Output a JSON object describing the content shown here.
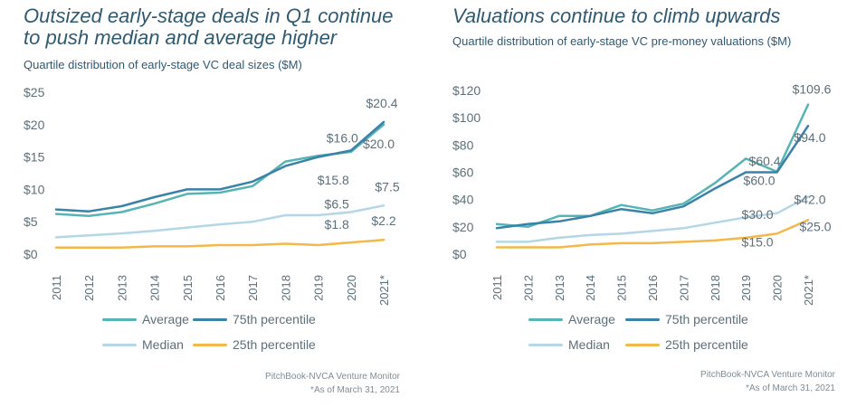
{
  "colors": {
    "average": "#56b4b4",
    "p75": "#3a82a8",
    "median": "#b4d6e6",
    "p25": "#f3b84a",
    "title": "#2f5a72",
    "axis": "#5d6f79"
  },
  "chart_data": [
    {
      "type": "line",
      "title": "Outsized early-stage deals in Q1 continue to push median and average higher",
      "title_lines": [
        "Outsized early-stage deals in Q1 continue",
        "to push median and average higher"
      ],
      "subtitle": "Quartile distribution of early-stage VC deal sizes ($M)",
      "categories": [
        "2011",
        "2012",
        "2013",
        "2014",
        "2015",
        "2016",
        "2017",
        "2018",
        "2019",
        "2020",
        "2021*"
      ],
      "ylim": [
        0,
        25
      ],
      "yticks": [
        0,
        5,
        10,
        15,
        20,
        25
      ],
      "ytick_labels": [
        "$0",
        "$5",
        "$10",
        "$15",
        "$20",
        "$25"
      ],
      "grid": false,
      "legend_position": "bottom",
      "series": [
        {
          "name": "Average",
          "color_key": "average",
          "values": [
            6.2,
            5.9,
            6.5,
            7.8,
            9.3,
            9.5,
            10.5,
            14.3,
            15.2,
            15.8,
            20.0
          ]
        },
        {
          "name": "75th percentile",
          "color_key": "p75",
          "values": [
            6.9,
            6.6,
            7.4,
            8.8,
            10.0,
            10.0,
            11.2,
            13.6,
            15.0,
            16.0,
            20.4
          ]
        },
        {
          "name": "Median",
          "color_key": "median",
          "values": [
            2.6,
            2.9,
            3.2,
            3.6,
            4.1,
            4.6,
            5.0,
            6.0,
            6.0,
            6.5,
            7.5
          ]
        },
        {
          "name": "25th percentile",
          "color_key": "p25",
          "values": [
            1.0,
            1.0,
            1.0,
            1.2,
            1.2,
            1.4,
            1.4,
            1.6,
            1.4,
            1.8,
            2.2
          ]
        }
      ],
      "annotations": [
        {
          "text": "$20.4",
          "series": "75th percentile",
          "index": 10,
          "anchor": "middle",
          "dx": -2,
          "dy": -16
        },
        {
          "text": "$16.0",
          "series": "75th percentile",
          "index": 9,
          "anchor": "end",
          "dx": 8,
          "dy": -9
        },
        {
          "text": "$20.0",
          "series": "Average",
          "index": 10,
          "anchor": "end",
          "dx": 12,
          "dy": 26
        },
        {
          "text": "$15.8",
          "series": "Average",
          "index": 9,
          "anchor": "end",
          "dx": -2,
          "dy": 36
        },
        {
          "text": "$6.5",
          "series": "Median",
          "index": 9,
          "anchor": "end",
          "dx": -2,
          "dy": -4
        },
        {
          "text": "$7.5",
          "series": "Median",
          "index": 10,
          "anchor": "middle",
          "dx": 4,
          "dy": -16
        },
        {
          "text": "$1.8",
          "series": "25th percentile",
          "index": 9,
          "anchor": "end",
          "dx": -2,
          "dy": -15
        },
        {
          "text": "$2.2",
          "series": "25th percentile",
          "index": 10,
          "anchor": "middle",
          "dx": 0,
          "dy": -16
        }
      ]
    },
    {
      "type": "line",
      "title": "Valuations continue to climb upwards",
      "title_lines": [
        "Valuations continue to climb upwards"
      ],
      "subtitle": "Quartile distribution of early-stage VC pre-money valuations ($M)",
      "categories": [
        "2011",
        "2012",
        "2013",
        "2014",
        "2015",
        "2016",
        "2017",
        "2018",
        "2019",
        "2020",
        "2021*"
      ],
      "ylim": [
        0,
        120
      ],
      "yticks": [
        0,
        20,
        40,
        60,
        80,
        100,
        120
      ],
      "ytick_labels": [
        "$0",
        "$20",
        "$40",
        "$60",
        "$80",
        "$100",
        "$120"
      ],
      "grid": false,
      "legend_position": "bottom",
      "series": [
        {
          "name": "Average",
          "color_key": "average",
          "values": [
            22,
            20,
            28,
            28,
            36,
            32,
            37,
            52,
            70,
            60.4,
            109.6
          ]
        },
        {
          "name": "75th percentile",
          "color_key": "p75",
          "values": [
            19,
            22,
            24,
            28,
            33,
            30,
            35,
            48,
            60,
            60.0,
            94.0
          ]
        },
        {
          "name": "Median",
          "color_key": "median",
          "values": [
            9,
            9,
            12,
            14,
            15,
            17,
            19,
            23,
            27,
            30.0,
            42.0
          ]
        },
        {
          "name": "25th percentile",
          "color_key": "p25",
          "values": [
            5,
            5,
            5,
            7,
            8,
            8,
            9,
            10,
            12,
            15.0,
            25.0
          ]
        }
      ],
      "annotations": [
        {
          "text": "$109.6",
          "series": "Average",
          "index": 10,
          "anchor": "middle",
          "dx": 4,
          "dy": -12
        },
        {
          "text": "$60.4",
          "series": "Average",
          "index": 9,
          "anchor": "end",
          "dx": 4,
          "dy": -7
        },
        {
          "text": "$60.0",
          "series": "75th percentile",
          "index": 9,
          "anchor": "end",
          "dx": -2,
          "dy": 14
        },
        {
          "text": "$94.0",
          "series": "75th percentile",
          "index": 10,
          "anchor": "middle",
          "dx": 2,
          "dy": 18
        },
        {
          "text": "$30.0",
          "series": "Median",
          "index": 9,
          "anchor": "end",
          "dx": -4,
          "dy": 6
        },
        {
          "text": "$42.0",
          "series": "Median",
          "index": 10,
          "anchor": "middle",
          "dx": 2,
          "dy": 8
        },
        {
          "text": "$15.0",
          "series": "25th percentile",
          "index": 9,
          "anchor": "end",
          "dx": -4,
          "dy": 14
        },
        {
          "text": "$25.0",
          "series": "25th percentile",
          "index": 10,
          "anchor": "middle",
          "dx": 8,
          "dy": 12
        }
      ]
    }
  ],
  "legend": {
    "items": [
      {
        "label": "Average",
        "color_key": "average"
      },
      {
        "label": "75th percentile",
        "color_key": "p75"
      },
      {
        "label": "Median",
        "color_key": "median"
      },
      {
        "label": "25th percentile",
        "color_key": "p25"
      }
    ]
  },
  "source": {
    "line1": "PitchBook-NVCA Venture Monitor",
    "line2": "*As of March 31, 2021"
  }
}
